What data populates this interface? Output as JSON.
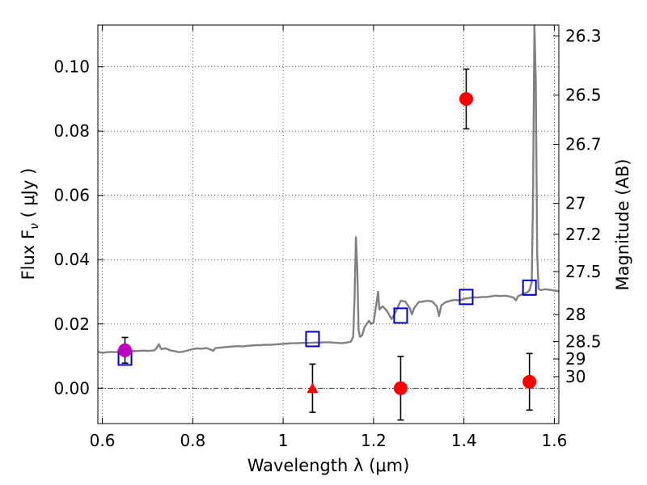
{
  "chart_data": {
    "type": "scatter",
    "xlabel": "Wavelength  λ (μm)",
    "ylabel_left": "Flux  F",
    "ylabel_left_sub": "ν",
    "ylabel_left_unit": "  ( μJy )",
    "ylabel_right": "Magnitude (AB)",
    "xlim": [
      0.59,
      1.61
    ],
    "ylim": [
      -0.011,
      0.113
    ],
    "grid": true,
    "x_ticks": [
      {
        "value": 0.6,
        "label": "0.6"
      },
      {
        "value": 0.8,
        "label": "0.8"
      },
      {
        "value": 1.0,
        "label": "1"
      },
      {
        "value": 1.2,
        "label": "1.2"
      },
      {
        "value": 1.4,
        "label": "1.4"
      },
      {
        "value": 1.6,
        "label": "1.6"
      }
    ],
    "y_ticks": [
      {
        "value": 0.0,
        "label": "0.00"
      },
      {
        "value": 0.02,
        "label": "0.02"
      },
      {
        "value": 0.04,
        "label": "0.04"
      },
      {
        "value": 0.06,
        "label": "0.06"
      },
      {
        "value": 0.08,
        "label": "0.08"
      },
      {
        "value": 0.1,
        "label": "0.10"
      }
    ],
    "right_ticks": [
      {
        "flux": 0.1096,
        "label": "26.3"
      },
      {
        "flux": 0.0912,
        "label": "26.5"
      },
      {
        "flux": 0.0759,
        "label": "26.7"
      },
      {
        "flux": 0.0575,
        "label": "27"
      },
      {
        "flux": 0.0479,
        "label": "27.2"
      },
      {
        "flux": 0.0363,
        "label": "27.5"
      },
      {
        "flux": 0.0229,
        "label": "28"
      },
      {
        "flux": 0.0145,
        "label": "28.5"
      },
      {
        "flux": 0.0091,
        "label": "29"
      },
      {
        "flux": 0.0036,
        "label": "30"
      }
    ],
    "series": [
      {
        "kind": "model_spectrum",
        "color": "#808080",
        "points": [
          [
            0.59,
            0.0113
          ],
          [
            0.6,
            0.011
          ],
          [
            0.61,
            0.0112
          ],
          [
            0.62,
            0.0113
          ],
          [
            0.63,
            0.0112
          ],
          [
            0.64,
            0.0114
          ],
          [
            0.65,
            0.0115
          ],
          [
            0.66,
            0.0116
          ],
          [
            0.67,
            0.0115
          ],
          [
            0.68,
            0.0116
          ],
          [
            0.69,
            0.0117
          ],
          [
            0.7,
            0.0116
          ],
          [
            0.71,
            0.0117
          ],
          [
            0.715,
            0.0118
          ],
          [
            0.72,
            0.0125
          ],
          [
            0.725,
            0.0137
          ],
          [
            0.73,
            0.0122
          ],
          [
            0.74,
            0.0124
          ],
          [
            0.75,
            0.0118
          ],
          [
            0.76,
            0.0115
          ],
          [
            0.77,
            0.0112
          ],
          [
            0.78,
            0.0114
          ],
          [
            0.79,
            0.0118
          ],
          [
            0.8,
            0.0122
          ],
          [
            0.81,
            0.0124
          ],
          [
            0.82,
            0.0123
          ],
          [
            0.83,
            0.0125
          ],
          [
            0.84,
            0.012
          ],
          [
            0.845,
            0.0116
          ],
          [
            0.85,
            0.0125
          ],
          [
            0.86,
            0.0126
          ],
          [
            0.87,
            0.0128
          ],
          [
            0.88,
            0.0129
          ],
          [
            0.89,
            0.013
          ],
          [
            0.9,
            0.0131
          ],
          [
            0.91,
            0.013
          ],
          [
            0.92,
            0.0132
          ],
          [
            0.93,
            0.0133
          ],
          [
            0.94,
            0.0134
          ],
          [
            0.95,
            0.0134
          ],
          [
            0.96,
            0.0135
          ],
          [
            0.97,
            0.0135
          ],
          [
            0.98,
            0.0136
          ],
          [
            0.99,
            0.0137
          ],
          [
            1.0,
            0.0138
          ],
          [
            1.01,
            0.0139
          ],
          [
            1.02,
            0.014
          ],
          [
            1.03,
            0.014
          ],
          [
            1.04,
            0.0141
          ],
          [
            1.05,
            0.0141
          ],
          [
            1.06,
            0.0141
          ],
          [
            1.07,
            0.0142
          ],
          [
            1.08,
            0.0142
          ],
          [
            1.09,
            0.0143
          ],
          [
            1.1,
            0.0143
          ],
          [
            1.11,
            0.0142
          ],
          [
            1.12,
            0.0141
          ],
          [
            1.13,
            0.014
          ],
          [
            1.14,
            0.0142
          ],
          [
            1.15,
            0.0145
          ],
          [
            1.155,
            0.016
          ],
          [
            1.158,
            0.028
          ],
          [
            1.161,
            0.047
          ],
          [
            1.164,
            0.037
          ],
          [
            1.167,
            0.018
          ],
          [
            1.17,
            0.016
          ],
          [
            1.175,
            0.0165
          ],
          [
            1.18,
            0.019
          ],
          [
            1.19,
            0.021
          ],
          [
            1.195,
            0.02
          ],
          [
            1.2,
            0.0205
          ],
          [
            1.205,
            0.025
          ],
          [
            1.21,
            0.03
          ],
          [
            1.213,
            0.0245
          ],
          [
            1.22,
            0.0255
          ],
          [
            1.23,
            0.024
          ],
          [
            1.24,
            0.0215
          ],
          [
            1.25,
            0.024
          ],
          [
            1.26,
            0.0272
          ],
          [
            1.27,
            0.027
          ],
          [
            1.28,
            0.025
          ],
          [
            1.285,
            0.023
          ],
          [
            1.29,
            0.025
          ],
          [
            1.3,
            0.0268
          ],
          [
            1.31,
            0.027
          ],
          [
            1.32,
            0.0272
          ],
          [
            1.33,
            0.027
          ],
          [
            1.34,
            0.0255
          ],
          [
            1.345,
            0.0225
          ],
          [
            1.35,
            0.0258
          ],
          [
            1.36,
            0.0268
          ],
          [
            1.37,
            0.0272
          ],
          [
            1.38,
            0.0275
          ],
          [
            1.39,
            0.0273
          ],
          [
            1.4,
            0.0278
          ],
          [
            1.41,
            0.028
          ],
          [
            1.42,
            0.0283
          ],
          [
            1.43,
            0.0282
          ],
          [
            1.44,
            0.0284
          ],
          [
            1.45,
            0.0284
          ],
          [
            1.46,
            0.0286
          ],
          [
            1.47,
            0.0288
          ],
          [
            1.48,
            0.0287
          ],
          [
            1.49,
            0.0288
          ],
          [
            1.5,
            0.0286
          ],
          [
            1.51,
            0.0282
          ],
          [
            1.515,
            0.0273
          ],
          [
            1.52,
            0.0287
          ],
          [
            1.53,
            0.0293
          ],
          [
            1.54,
            0.0298
          ],
          [
            1.545,
            0.0305
          ],
          [
            1.55,
            0.033
          ],
          [
            1.553,
            0.06
          ],
          [
            1.556,
            0.113
          ],
          [
            1.559,
            0.095
          ],
          [
            1.562,
            0.042
          ],
          [
            1.565,
            0.031
          ],
          [
            1.57,
            0.0305
          ],
          [
            1.58,
            0.0308
          ],
          [
            1.59,
            0.0306
          ],
          [
            1.6,
            0.0304
          ],
          [
            1.61,
            0.0302
          ]
        ]
      },
      {
        "kind": "model_photometry",
        "marker": "open-square",
        "color": "#0000cc",
        "points": [
          [
            0.65,
            0.0095
          ],
          [
            1.065,
            0.0153
          ],
          [
            1.26,
            0.0226
          ],
          [
            1.405,
            0.0284
          ],
          [
            1.545,
            0.0313
          ]
        ]
      },
      {
        "kind": "detections",
        "marker": "circle",
        "color": "#ff0000",
        "points": [
          {
            "x": 1.405,
            "y": 0.09,
            "err": 0.0093
          },
          {
            "x": 1.26,
            "y": 0.0,
            "err": 0.0099
          },
          {
            "x": 1.545,
            "y": 0.002,
            "err": 0.0088
          }
        ]
      },
      {
        "kind": "detection",
        "marker": "circle",
        "color": "#bf00bf",
        "points": [
          {
            "x": 0.65,
            "y": 0.0118,
            "err": 0.004
          }
        ]
      },
      {
        "kind": "limit",
        "marker": "triangle",
        "color": "#ff0000",
        "points": [
          {
            "x": 1.065,
            "y": 0.0,
            "err": 0.0075
          }
        ]
      }
    ]
  }
}
